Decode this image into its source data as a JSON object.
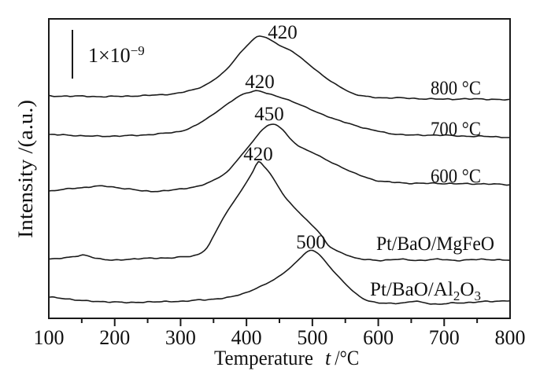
{
  "figure": {
    "y_axis_title": "Intensity /(a.u.)",
    "x_axis_title": {
      "text": "Temperature",
      "symbol": "t",
      "unit": "/°C"
    },
    "scale_bar": {
      "base": "1×10",
      "exponent": "−9"
    }
  },
  "chart_data": {
    "type": "line",
    "title": "",
    "xlabel": "Temperature t /°C",
    "ylabel": "Intensity /(a.u.)",
    "x_range": [
      100,
      800
    ],
    "x_major_tick_labels": [
      100,
      200,
      300,
      400,
      500,
      600,
      700,
      800
    ],
    "x_minor_ticks": [
      150,
      250,
      350,
      450,
      550,
      650,
      750
    ],
    "y_scale_bar_value": "1×10⁻⁹",
    "y_unit": "a.u.",
    "grid": false,
    "legend_position": "inline-right",
    "series": [
      {
        "name": "800 °C",
        "peak_label": "420",
        "peak_temperature": 420,
        "points": [
          [
            100,
            4.56
          ],
          [
            140,
            4.56
          ],
          [
            180,
            4.55
          ],
          [
            220,
            4.56
          ],
          [
            260,
            4.58
          ],
          [
            290,
            4.61
          ],
          [
            310,
            4.66
          ],
          [
            330,
            4.74
          ],
          [
            350,
            4.89
          ],
          [
            370,
            5.11
          ],
          [
            390,
            5.44
          ],
          [
            404,
            5.64
          ],
          [
            412,
            5.74
          ],
          [
            420,
            5.79
          ],
          [
            430,
            5.76
          ],
          [
            442,
            5.67
          ],
          [
            455,
            5.57
          ],
          [
            470,
            5.47
          ],
          [
            485,
            5.32
          ],
          [
            505,
            5.1
          ],
          [
            525,
            4.89
          ],
          [
            545,
            4.73
          ],
          [
            562,
            4.61
          ],
          [
            578,
            4.56
          ],
          [
            600,
            4.53
          ],
          [
            640,
            4.52
          ],
          [
            680,
            4.5
          ],
          [
            720,
            4.5
          ],
          [
            760,
            4.5
          ],
          [
            800,
            4.48
          ]
        ]
      },
      {
        "name": "700 °C",
        "peak_label": "420",
        "peak_temperature": 420,
        "points": [
          [
            100,
            3.77
          ],
          [
            130,
            3.76
          ],
          [
            160,
            3.74
          ],
          [
            200,
            3.74
          ],
          [
            240,
            3.76
          ],
          [
            270,
            3.79
          ],
          [
            300,
            3.84
          ],
          [
            320,
            3.94
          ],
          [
            340,
            4.1
          ],
          [
            360,
            4.29
          ],
          [
            380,
            4.48
          ],
          [
            395,
            4.6
          ],
          [
            410,
            4.66
          ],
          [
            418,
            4.67
          ],
          [
            430,
            4.62
          ],
          [
            445,
            4.56
          ],
          [
            460,
            4.5
          ],
          [
            480,
            4.39
          ],
          [
            500,
            4.27
          ],
          [
            520,
            4.16
          ],
          [
            540,
            4.06
          ],
          [
            560,
            3.98
          ],
          [
            580,
            3.9
          ],
          [
            600,
            3.84
          ],
          [
            620,
            3.79
          ],
          [
            650,
            3.76
          ],
          [
            690,
            3.76
          ],
          [
            730,
            3.74
          ],
          [
            770,
            3.73
          ],
          [
            800,
            3.71
          ]
        ]
      },
      {
        "name": "600 °C",
        "peak_label": "450",
        "peak_temperature": 450,
        "points": [
          [
            100,
            2.61
          ],
          [
            125,
            2.65
          ],
          [
            150,
            2.68
          ],
          [
            170,
            2.71
          ],
          [
            185,
            2.71
          ],
          [
            205,
            2.68
          ],
          [
            225,
            2.65
          ],
          [
            245,
            2.61
          ],
          [
            265,
            2.61
          ],
          [
            285,
            2.63
          ],
          [
            305,
            2.66
          ],
          [
            325,
            2.71
          ],
          [
            340,
            2.77
          ],
          [
            355,
            2.87
          ],
          [
            370,
            3.0
          ],
          [
            385,
            3.23
          ],
          [
            400,
            3.47
          ],
          [
            413,
            3.69
          ],
          [
            424,
            3.87
          ],
          [
            434,
            3.97
          ],
          [
            444,
            3.97
          ],
          [
            455,
            3.87
          ],
          [
            466,
            3.69
          ],
          [
            478,
            3.55
          ],
          [
            492,
            3.45
          ],
          [
            505,
            3.37
          ],
          [
            520,
            3.26
          ],
          [
            540,
            3.13
          ],
          [
            560,
            3.0
          ],
          [
            580,
            2.9
          ],
          [
            600,
            2.82
          ],
          [
            625,
            2.79
          ],
          [
            655,
            2.77
          ],
          [
            690,
            2.77
          ],
          [
            725,
            2.76
          ],
          [
            760,
            2.76
          ],
          [
            800,
            2.74
          ]
        ]
      },
      {
        "name": "Pt/BaO/MgFeO",
        "peak_label": "420",
        "peak_temperature": 420,
        "points": [
          [
            100,
            1.21
          ],
          [
            120,
            1.24
          ],
          [
            140,
            1.27
          ],
          [
            155,
            1.29
          ],
          [
            170,
            1.24
          ],
          [
            185,
            1.21
          ],
          [
            200,
            1.19
          ],
          [
            220,
            1.21
          ],
          [
            240,
            1.23
          ],
          [
            260,
            1.23
          ],
          [
            280,
            1.24
          ],
          [
            300,
            1.26
          ],
          [
            315,
            1.27
          ],
          [
            328,
            1.32
          ],
          [
            340,
            1.45
          ],
          [
            352,
            1.74
          ],
          [
            364,
            2.04
          ],
          [
            376,
            2.3
          ],
          [
            388,
            2.54
          ],
          [
            400,
            2.79
          ],
          [
            410,
            3.02
          ],
          [
            418,
            3.21
          ],
          [
            427,
            3.11
          ],
          [
            436,
            2.97
          ],
          [
            448,
            2.71
          ],
          [
            458,
            2.5
          ],
          [
            470,
            2.31
          ],
          [
            483,
            2.13
          ],
          [
            495,
            1.97
          ],
          [
            505,
            1.84
          ],
          [
            515,
            1.68
          ],
          [
            524,
            1.5
          ],
          [
            535,
            1.4
          ],
          [
            545,
            1.34
          ],
          [
            555,
            1.29
          ],
          [
            565,
            1.24
          ],
          [
            578,
            1.21
          ],
          [
            600,
            1.19
          ],
          [
            630,
            1.21
          ],
          [
            660,
            1.19
          ],
          [
            690,
            1.21
          ],
          [
            720,
            1.19
          ],
          [
            760,
            1.21
          ],
          [
            800,
            1.19
          ]
        ]
      },
      {
        "name": "Pt/BaO/Al2O3",
        "name_parts": {
          "base": "Pt/BaO/Al",
          "sub1": "2",
          "mid": "O",
          "sub2": "3"
        },
        "peak_label": "500",
        "peak_temperature": 500,
        "points": [
          [
            100,
            0.44
          ],
          [
            125,
            0.4
          ],
          [
            150,
            0.37
          ],
          [
            175,
            0.34
          ],
          [
            200,
            0.34
          ],
          [
            225,
            0.32
          ],
          [
            250,
            0.34
          ],
          [
            275,
            0.34
          ],
          [
            300,
            0.35
          ],
          [
            320,
            0.37
          ],
          [
            340,
            0.38
          ],
          [
            360,
            0.41
          ],
          [
            380,
            0.45
          ],
          [
            400,
            0.53
          ],
          [
            415,
            0.62
          ],
          [
            430,
            0.71
          ],
          [
            445,
            0.82
          ],
          [
            460,
            0.97
          ],
          [
            472,
            1.11
          ],
          [
            484,
            1.27
          ],
          [
            493,
            1.37
          ],
          [
            500,
            1.39
          ],
          [
            508,
            1.34
          ],
          [
            517,
            1.21
          ],
          [
            528,
            1.03
          ],
          [
            540,
            0.85
          ],
          [
            552,
            0.68
          ],
          [
            565,
            0.52
          ],
          [
            578,
            0.4
          ],
          [
            590,
            0.34
          ],
          [
            605,
            0.31
          ],
          [
            620,
            0.31
          ],
          [
            640,
            0.32
          ],
          [
            655,
            0.35
          ],
          [
            670,
            0.32
          ],
          [
            690,
            0.29
          ],
          [
            710,
            0.31
          ],
          [
            730,
            0.32
          ],
          [
            755,
            0.34
          ],
          [
            780,
            0.35
          ],
          [
            800,
            0.37
          ]
        ]
      }
    ]
  }
}
